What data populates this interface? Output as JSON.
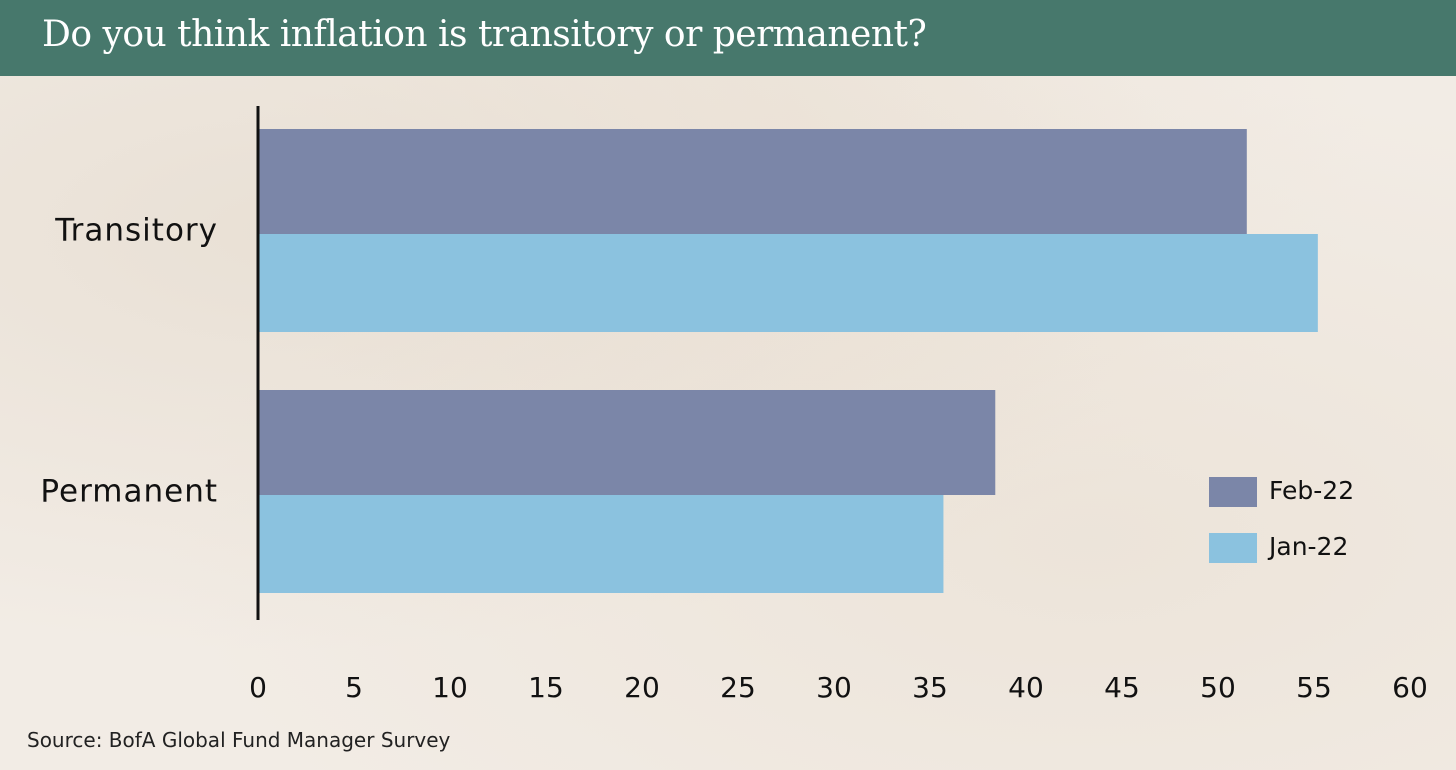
{
  "header": {
    "title": "Do you think inflation is transitory or permanent?"
  },
  "footer": {
    "source": "Source: BofA Global Fund Manager Survey"
  },
  "colors": {
    "header_bg": "#47786c",
    "background": "#f2ece5",
    "feb_bar": "#7b86a8",
    "jan_bar": "#8bc2df",
    "axis": "#111111"
  },
  "chart_data": {
    "type": "bar",
    "orientation": "horizontal",
    "title": "Do you think inflation is transitory or permanent?",
    "categories": [
      "Transitory",
      "Permanent"
    ],
    "series": [
      {
        "name": "Feb-22",
        "color": "#7b86a8",
        "values": [
          51.5,
          38.4
        ]
      },
      {
        "name": "Jan-22",
        "color": "#8bc2df",
        "values": [
          55.2,
          35.7
        ]
      }
    ],
    "xlim": [
      0,
      60
    ],
    "xticks": [
      0,
      5,
      10,
      15,
      20,
      25,
      30,
      35,
      40,
      45,
      50,
      55,
      60
    ],
    "grid": false,
    "legend_position": "bottom-right",
    "source": "Source: BofA Global Fund Manager Survey"
  }
}
